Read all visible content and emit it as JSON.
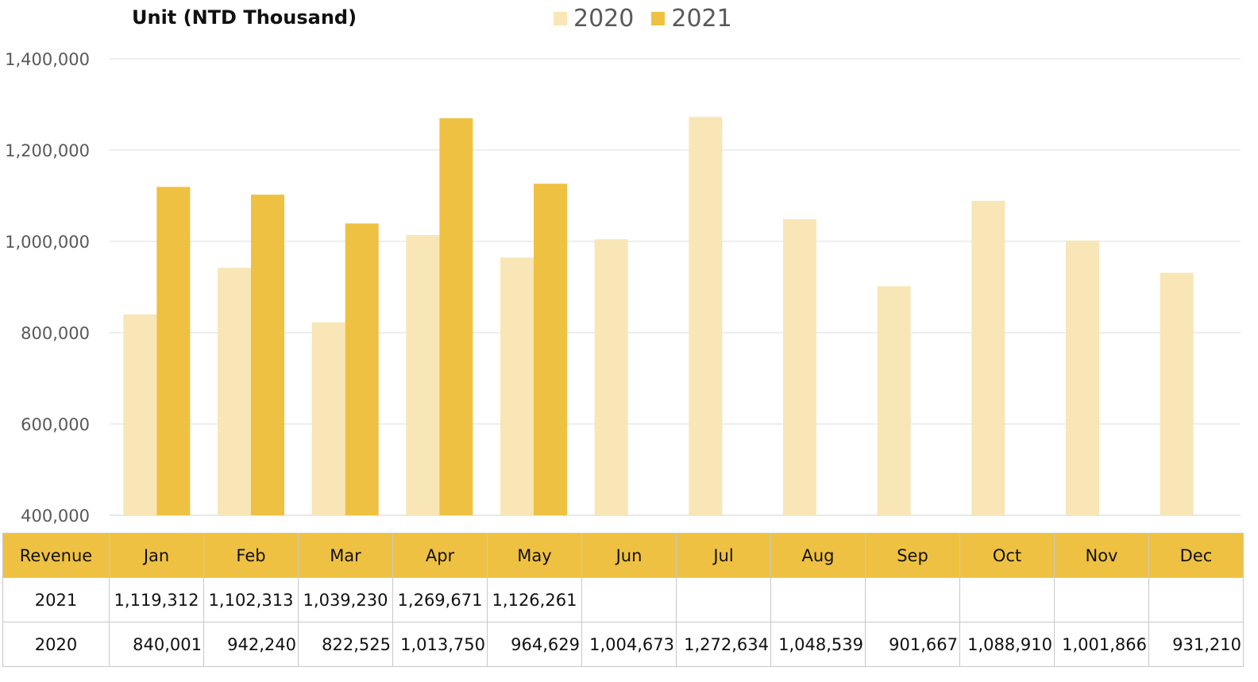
{
  "chart_data": {
    "type": "bar",
    "title": "Unit (NTD  Thousand)",
    "categories": [
      "Jan",
      "Feb",
      "Mar",
      "Apr",
      "May",
      "Jun",
      "Jul",
      "Aug",
      "Sep",
      "Oct",
      "Nov",
      "Dec"
    ],
    "series": [
      {
        "name": "2020",
        "color": "#f8e6b6",
        "values": [
          840001,
          942240,
          822525,
          1013750,
          964629,
          1004673,
          1272634,
          1048539,
          901667,
          1088910,
          1001866,
          931210
        ]
      },
      {
        "name": "2021",
        "color": "#efc142",
        "values": [
          1119312,
          1102313,
          1039230,
          1269671,
          1126261,
          null,
          null,
          null,
          null,
          null,
          null,
          null
        ]
      }
    ],
    "ylim": [
      400000,
      1400000
    ],
    "yticks": [
      "400,000",
      "600,000",
      "800,000",
      "1,000,000",
      "1,200,000",
      "1,400,000"
    ],
    "grid": true,
    "legend_position": "top-center"
  },
  "table": {
    "header_label": "Revenue",
    "months": [
      "Jan",
      "Feb",
      "Mar",
      "Apr",
      "May",
      "Jun",
      "Jul",
      "Aug",
      "Sep",
      "Oct",
      "Nov",
      "Dec"
    ],
    "rows": [
      {
        "label": "2021",
        "cells": [
          "1,119,312",
          "1,102,313",
          "1,039,230",
          "1,269,671",
          "1,126,261",
          "",
          "",
          "",
          "",
          "",
          "",
          ""
        ]
      },
      {
        "label": "2020",
        "cells": [
          "840,001",
          "942,240",
          "822,525",
          "1,013,750",
          "964,629",
          "1,004,673",
          "1,272,634",
          "1,048,539",
          "901,667",
          "1,088,910",
          "1,001,866",
          "931,210"
        ]
      }
    ],
    "header_color": "#efc142"
  }
}
